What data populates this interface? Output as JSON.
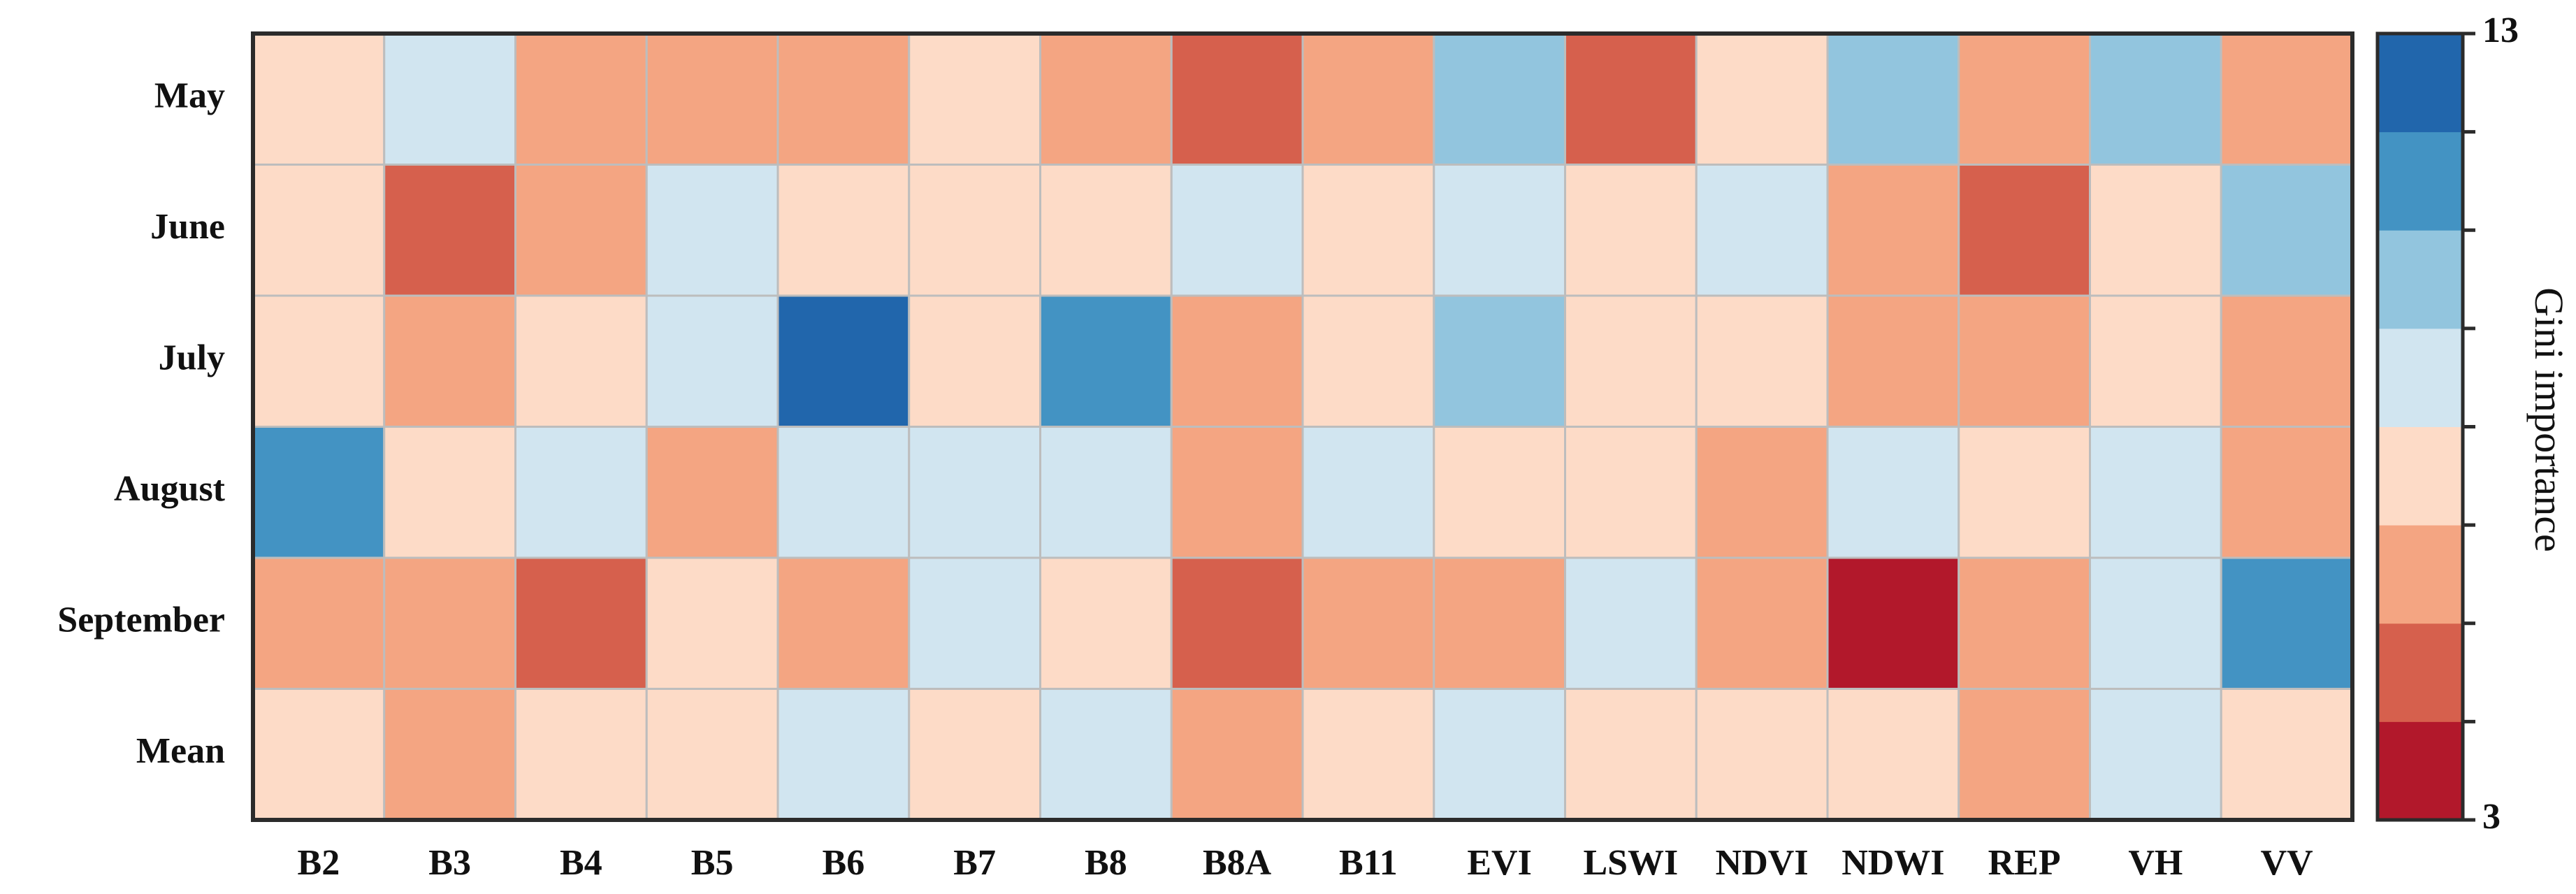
{
  "chart_data": {
    "type": "heatmap",
    "title": "",
    "rows": [
      "May",
      "June",
      "July",
      "August",
      "September",
      "Mean"
    ],
    "columns": [
      "B2",
      "B3",
      "B4",
      "B5",
      "B6",
      "B7",
      "B8",
      "B8A",
      "B11",
      "EVI",
      "LSWI",
      "NDVI",
      "NDWI",
      "REP",
      "VH",
      "VV"
    ],
    "values": [
      [
        7.2,
        8.3,
        6.5,
        6.5,
        6.5,
        7.2,
        6.5,
        5.2,
        6.5,
        9.5,
        5.2,
        7.2,
        9.5,
        6.5,
        9.5,
        6.5
      ],
      [
        7.2,
        5.2,
        6.5,
        8.3,
        7.2,
        7.2,
        7.2,
        8.3,
        7.2,
        8.3,
        7.2,
        8.3,
        6.5,
        5.2,
        7.2,
        9.5
      ],
      [
        7.2,
        6.5,
        7.2,
        8.3,
        12.5,
        7.2,
        10.8,
        6.5,
        7.2,
        9.5,
        7.2,
        7.2,
        6.5,
        6.5,
        7.2,
        6.5
      ],
      [
        10.8,
        7.2,
        8.3,
        6.5,
        8.3,
        8.3,
        8.3,
        6.5,
        8.3,
        7.2,
        7.2,
        6.5,
        8.3,
        7.2,
        8.3,
        6.5
      ],
      [
        6.5,
        6.5,
        5.2,
        7.2,
        6.5,
        8.3,
        7.2,
        5.2,
        6.5,
        6.5,
        8.3,
        6.5,
        3.6,
        6.5,
        8.3,
        10.8
      ],
      [
        7.2,
        6.5,
        7.2,
        7.2,
        8.3,
        7.2,
        8.3,
        6.5,
        7.2,
        8.3,
        7.2,
        7.2,
        7.2,
        6.5,
        8.3,
        7.2
      ]
    ],
    "zlim": [
      3,
      13
    ],
    "colorbar": {
      "label": "Gini importance",
      "tick_labels": [
        "13",
        "3"
      ],
      "tick_values": [
        13,
        3
      ],
      "bins": 8,
      "colors_low_to_high": [
        "#b2182b",
        "#d6604d",
        "#f4a582",
        "#fddbc7",
        "#d1e5f0",
        "#92c5de",
        "#4393c3",
        "#2166ac"
      ]
    },
    "xlabel": "",
    "ylabel": ""
  }
}
